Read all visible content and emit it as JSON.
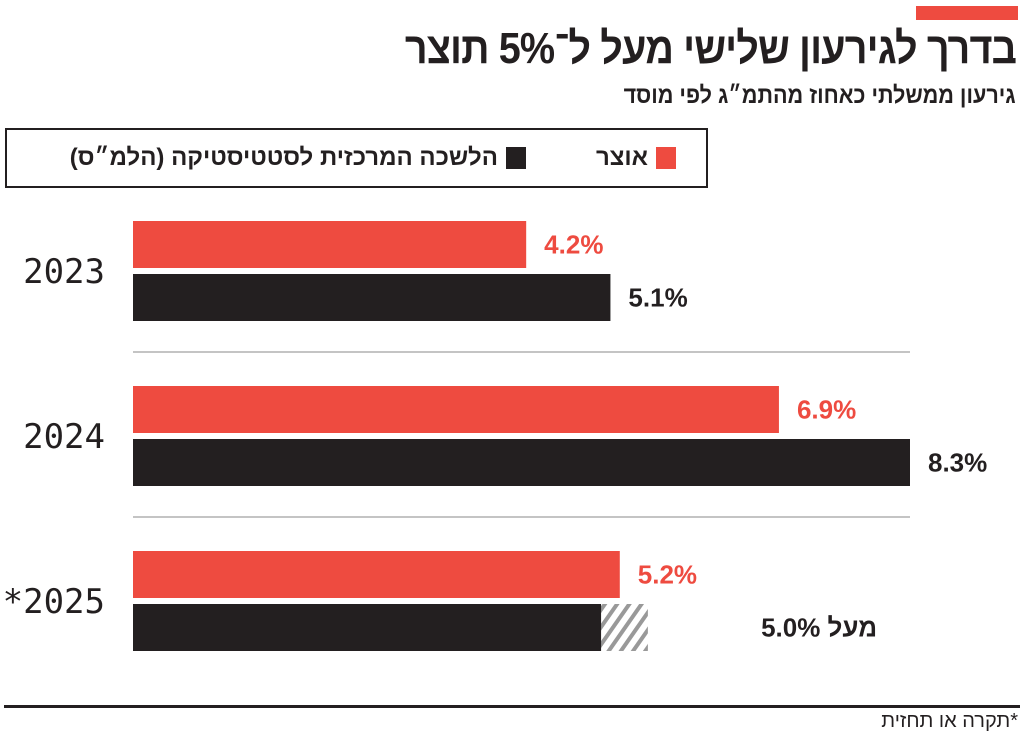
{
  "title": "בדרך לגירעון שלישי מעל ל־5% תוצר",
  "subtitle": "גירעון ממשלתי כאחוז מהתמ״ג לפי מוסד",
  "colors": {
    "accent": "#ee4b40",
    "treasury": "#ee4b40",
    "cbs": "#231f20",
    "separator": "#888888"
  },
  "footnote": "*תקרה או תחזית",
  "chart_data": {
    "type": "bar",
    "orientation": "horizontal",
    "title": "בדרך לגירעון שלישי מעל ל־5% תוצר",
    "subtitle": "גירעון ממשלתי כאחוז מהתמ״ג לפי מוסד",
    "categories": [
      "2023",
      "2024",
      "*2025"
    ],
    "legend_placement": "top",
    "grid": false,
    "xlim": [
      0,
      8.3
    ],
    "series": [
      {
        "name": "אוצר",
        "color": "#ee4b40",
        "values": [
          4.2,
          6.9,
          5.2
        ],
        "labels": [
          "4.2%",
          "6.9%",
          "5.2%"
        ]
      },
      {
        "name": "הלשכה המרכזית לסטטיסטיקה (הלמ״ס)",
        "color": "#231f20",
        "values": [
          5.1,
          8.3,
          5.0
        ],
        "labels": [
          "5.1%",
          "8.3%",
          "מעל 5.0%"
        ],
        "hatched_extension": [
          null,
          null,
          5.5
        ]
      }
    ]
  }
}
